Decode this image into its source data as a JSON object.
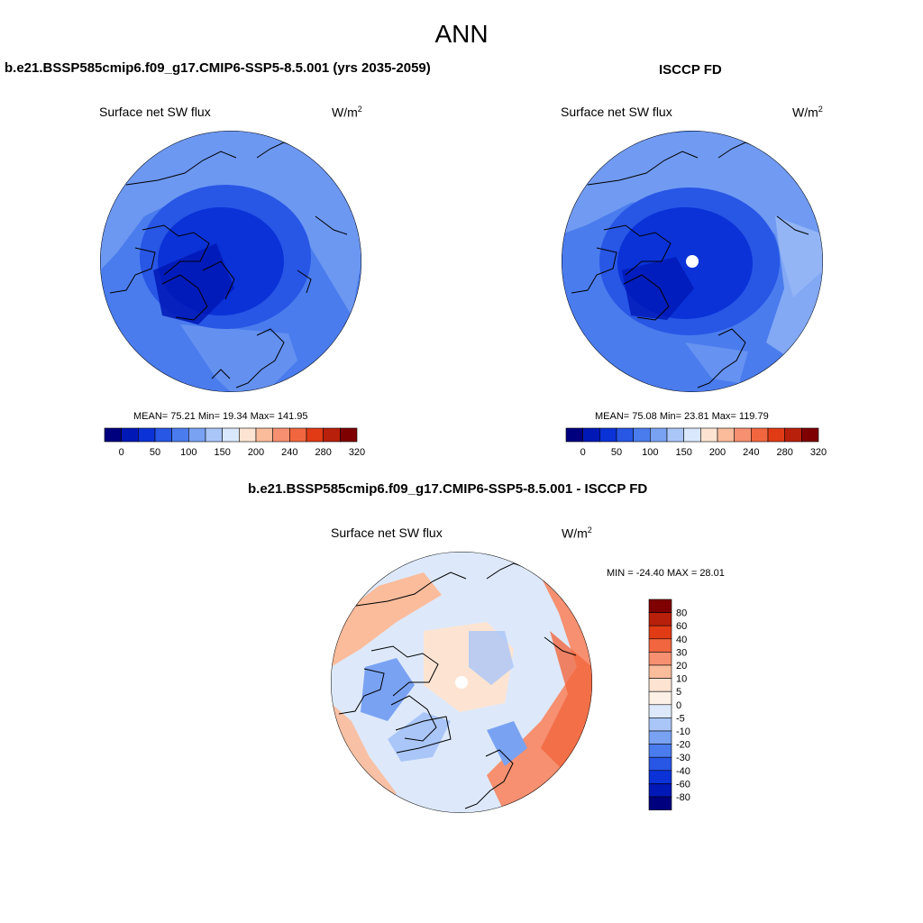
{
  "title": "ANN",
  "left_panel": {
    "title": "b.e21.BSSP585cmip6.f09_g17.CMIP6-SSP5-8.5.001 (yrs 2035-2059)",
    "variable": "Surface net SW flux",
    "units": "W/m",
    "units_exp": "2",
    "stats": "MEAN=  75.21  Min=  19.34  Max= 141.95"
  },
  "right_panel": {
    "title": "ISCCP FD",
    "variable": "Surface net SW flux",
    "units": "W/m",
    "units_exp": "2",
    "stats": "MEAN=  75.08  Min=  23.81  Max= 119.79"
  },
  "diff_panel": {
    "title": "b.e21.BSSP585cmip6.f09_g17.CMIP6-SSP5-8.5.001 - ISCCP FD",
    "variable": "Surface net SW flux",
    "units": "W/m",
    "units_exp": "2",
    "stats": "MIN = -24.40 MAX =  28.01"
  },
  "colorbar_abs": {
    "ticks": [
      "0",
      "50",
      "100",
      "150",
      "200",
      "240",
      "280",
      "320"
    ],
    "colors": [
      "#00007f",
      "#0018b6",
      "#0a32d7",
      "#2856e5",
      "#4a7cee",
      "#7aa2f3",
      "#aac6f8",
      "#d9e8fc",
      "#fde4d2",
      "#fbbc9c",
      "#f69070",
      "#f2663f",
      "#e13b16",
      "#b8200b",
      "#7f0000"
    ]
  },
  "colorbar_diff": {
    "ticks": [
      "80",
      "60",
      "40",
      "30",
      "20",
      "10",
      "5",
      "0",
      "-5",
      "-10",
      "-20",
      "-30",
      "-40",
      "-60",
      "-80"
    ],
    "colors": [
      "#7f0000",
      "#b8200b",
      "#e13b16",
      "#f2663f",
      "#f69070",
      "#fbbc9c",
      "#fde4d2",
      "#fdf0e6",
      "#dde9fb",
      "#aac6f8",
      "#7aa2f3",
      "#4a7cee",
      "#2856e5",
      "#0a32d7",
      "#0018b6",
      "#00007f"
    ]
  },
  "chart_data": [
    {
      "type": "heatmap",
      "title": "b.e21.BSSP585cmip6.f09_g17.CMIP6-SSP5-8.5.001 (yrs 2035-2059)",
      "variable": "Surface net SW flux",
      "units": "W/m2",
      "projection": "north polar stereographic",
      "mean": 75.21,
      "min": 19.34,
      "max": 141.95,
      "levels": [
        0,
        25,
        50,
        75,
        100,
        125,
        150,
        175,
        200,
        220,
        240,
        260,
        280,
        300,
        320
      ]
    },
    {
      "type": "heatmap",
      "title": "ISCCP FD",
      "variable": "Surface net SW flux",
      "units": "W/m2",
      "projection": "north polar stereographic",
      "mean": 75.08,
      "min": 23.81,
      "max": 119.79,
      "levels": [
        0,
        25,
        50,
        75,
        100,
        125,
        150,
        175,
        200,
        220,
        240,
        260,
        280,
        300,
        320
      ]
    },
    {
      "type": "heatmap",
      "title": "b.e21.BSSP585cmip6.f09_g17.CMIP6-SSP5-8.5.001 - ISCCP FD",
      "variable": "Surface net SW flux",
      "units": "W/m2",
      "projection": "north polar stereographic",
      "min": -24.4,
      "max": 28.01,
      "levels": [
        -80,
        -60,
        -40,
        -30,
        -20,
        -10,
        -5,
        0,
        5,
        10,
        20,
        30,
        40,
        60,
        80
      ]
    }
  ]
}
